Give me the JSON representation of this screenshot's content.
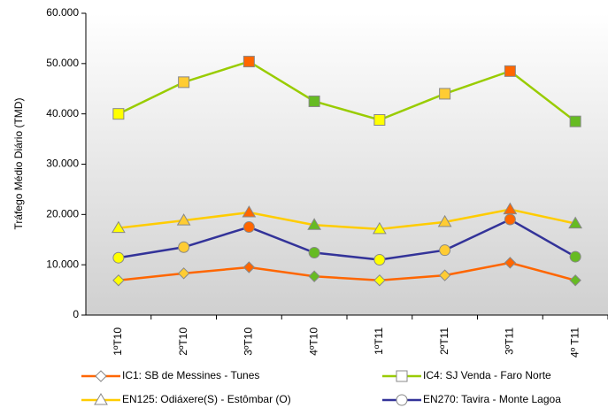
{
  "chart_data": {
    "type": "line",
    "y_label": "Tráfego Médio Diário (TMD)",
    "categories": [
      "1ºT10",
      "2ºT10",
      "3ºT10",
      "4ºT10",
      "1ºT11",
      "2ºT11",
      "3ºT11",
      "4º T11"
    ],
    "series": [
      {
        "name": "IC1: SB de Messines - Tunes",
        "color": "#ff6600",
        "marker": "diamond",
        "values": [
          6900,
          8300,
          9500,
          7700,
          6900,
          7900,
          10400,
          6900
        ]
      },
      {
        "name": "IC4: SJ Venda - Faro Norte",
        "color": "#99cc00",
        "marker": "square",
        "values": [
          40000,
          46300,
          50400,
          42500,
          38800,
          44000,
          48500,
          38500
        ]
      },
      {
        "name": "EN125: Odiáxere(S) - Estômbar (O)",
        "color": "#ffcc00",
        "marker": "triangle",
        "values": [
          17300,
          18800,
          20400,
          17900,
          17100,
          18500,
          21000,
          18200
        ]
      },
      {
        "name": "EN270: Tavira - Monte Lagoa",
        "color": "#333399",
        "marker": "circle",
        "values": [
          11400,
          13500,
          17500,
          12400,
          11000,
          12900,
          19000,
          11600
        ]
      }
    ],
    "marker_colors": [
      "#ffff00",
      "#ffcc33",
      "#ff6600",
      "#66bb22",
      "#ffff00",
      "#ffcc33",
      "#ff6600",
      "#66bb22"
    ],
    "ylim": [
      0,
      60000
    ],
    "yticks": [
      {
        "value": 0,
        "label": "0"
      },
      {
        "value": 10000,
        "label": "10.000"
      },
      {
        "value": 20000,
        "label": "20.000"
      },
      {
        "value": 30000,
        "label": "30.000"
      },
      {
        "value": 40000,
        "label": "40.000"
      },
      {
        "value": 50000,
        "label": "50.000"
      },
      {
        "value": 60000,
        "label": "60.000"
      }
    ],
    "grid": false
  }
}
